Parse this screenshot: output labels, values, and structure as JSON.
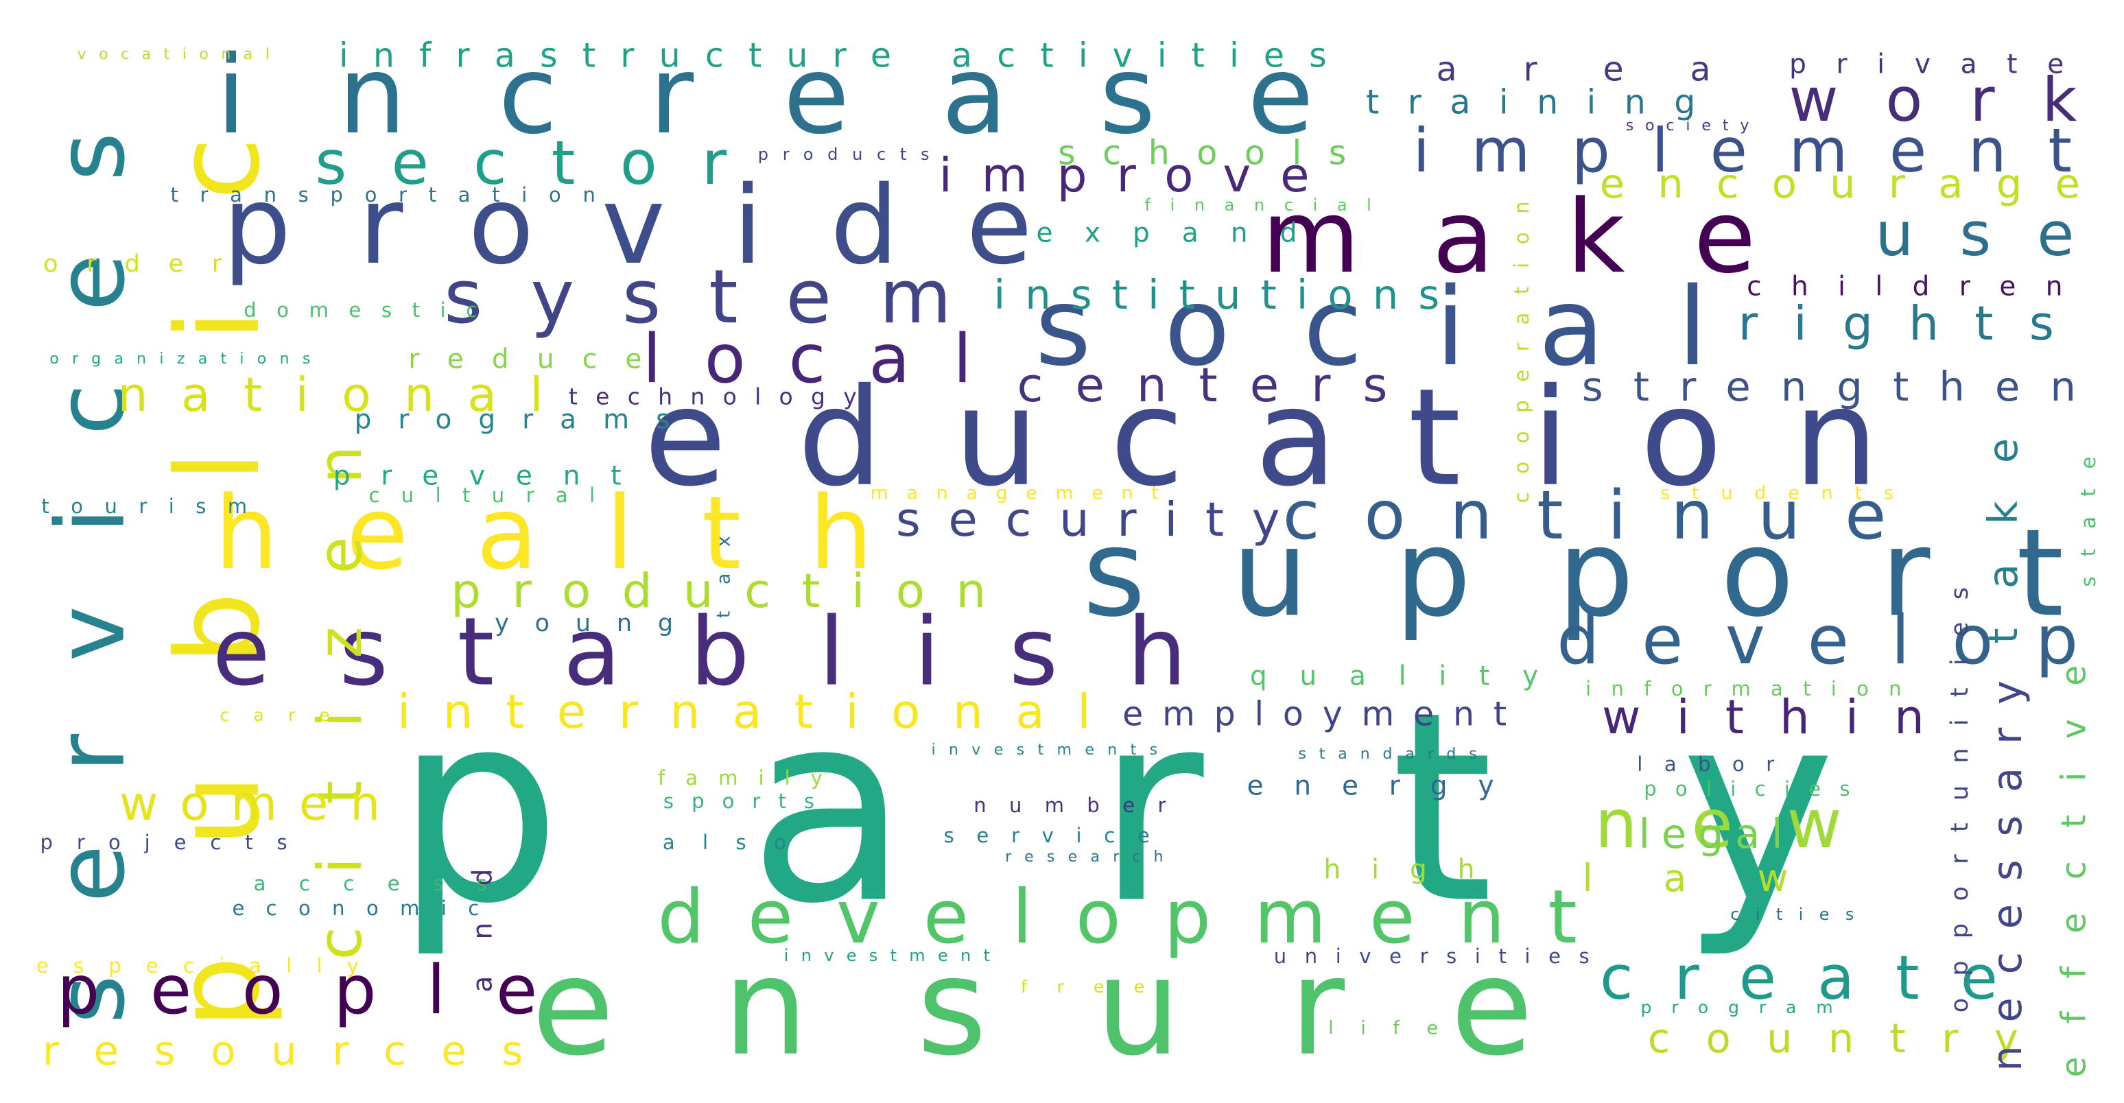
{
  "words": [
    {
      "text": "party",
      "color": "#22a884"
    },
    {
      "text": "ensure",
      "color": "#4ec36b"
    },
    {
      "text": "education",
      "color": "#3e4a89"
    },
    {
      "text": "support",
      "color": "#31688e"
    },
    {
      "text": "social",
      "color": "#3a548c"
    },
    {
      "text": "increase",
      "color": "#2c728e"
    },
    {
      "text": "provide",
      "color": "#3d4e8a"
    },
    {
      "text": "make",
      "color": "#440154"
    },
    {
      "text": "public",
      "color": "#f1e51d"
    },
    {
      "text": "services",
      "color": "#26828e"
    },
    {
      "text": "establish",
      "color": "#472d7b"
    },
    {
      "text": "health",
      "color": "#fde725"
    },
    {
      "text": "development",
      "color": "#52c569"
    },
    {
      "text": "people",
      "color": "#440154"
    },
    {
      "text": "system",
      "color": "#414487"
    },
    {
      "text": "citizen",
      "color": "#cde11d"
    },
    {
      "text": "continue",
      "color": "#355e8d"
    },
    {
      "text": "local",
      "color": "#482677"
    },
    {
      "text": "develop",
      "color": "#33628d"
    },
    {
      "text": "new",
      "color": "#9fda3a"
    },
    {
      "text": "implement",
      "color": "#3b528b"
    },
    {
      "text": "create",
      "color": "#1f9a8a"
    },
    {
      "text": "sector",
      "color": "#1f9e89"
    },
    {
      "text": "work",
      "color": "#472c7a"
    },
    {
      "text": "use",
      "color": "#2d708e"
    },
    {
      "text": "international",
      "color": "#f8e621"
    },
    {
      "text": "within",
      "color": "#482576"
    },
    {
      "text": "production",
      "color": "#addc30"
    },
    {
      "text": "national",
      "color": "#d8e219"
    },
    {
      "text": "women",
      "color": "#e5e419"
    },
    {
      "text": "resources",
      "color": "#fde725"
    },
    {
      "text": "country",
      "color": "#bade28"
    },
    {
      "text": "centers",
      "color": "#46327e"
    },
    {
      "text": "strengthen",
      "color": "#3b528b"
    },
    {
      "text": "rights",
      "color": "#2a788e"
    },
    {
      "text": "improve",
      "color": "#482878"
    },
    {
      "text": "institutions",
      "color": "#21918c"
    },
    {
      "text": "encourage",
      "color": "#c2df23"
    },
    {
      "text": "security",
      "color": "#3f4788"
    },
    {
      "text": "necessary",
      "color": "#404688"
    },
    {
      "text": "effective",
      "color": "#5ec962"
    },
    {
      "text": "take",
      "color": "#277f8e"
    },
    {
      "text": "employment",
      "color": "#414487"
    },
    {
      "text": "legal",
      "color": "#7ad151"
    },
    {
      "text": "law",
      "color": "#b5de2b"
    },
    {
      "text": "infrastructure activities",
      "color": "#1fa187"
    },
    {
      "text": "area",
      "color": "#443983"
    },
    {
      "text": "private",
      "color": "#45337d"
    },
    {
      "text": "training",
      "color": "#2a768e"
    },
    {
      "text": "schools",
      "color": "#6ccd5a"
    },
    {
      "text": "expand",
      "color": "#1fa187"
    },
    {
      "text": "children",
      "color": "#471063"
    },
    {
      "text": "reduce",
      "color": "#86d549"
    },
    {
      "text": "programs",
      "color": "#25858e"
    },
    {
      "text": "prevent",
      "color": "#22a884"
    },
    {
      "text": "energy",
      "color": "#31688e"
    },
    {
      "text": "quality",
      "color": "#54c568"
    },
    {
      "text": "high",
      "color": "#a5db36"
    },
    {
      "text": "opportunities",
      "color": "#414487"
    },
    {
      "text": "young",
      "color": "#2c728e"
    },
    {
      "text": "and",
      "color": "#472c7a"
    },
    {
      "text": "technology",
      "color": "#46307e"
    },
    {
      "text": "order",
      "color": "#d5e21a"
    },
    {
      "text": "tourism",
      "color": "#27808e"
    },
    {
      "text": "projects",
      "color": "#3e4989"
    },
    {
      "text": "access",
      "color": "#3aba76"
    },
    {
      "text": "economic",
      "color": "#2a788e"
    },
    {
      "text": "especially",
      "color": "#fde725"
    },
    {
      "text": "number",
      "color": "#46327e"
    },
    {
      "text": "service",
      "color": "#26828e"
    },
    {
      "text": "also",
      "color": "#26828e"
    },
    {
      "text": "family",
      "color": "#9bd93c"
    },
    {
      "text": "sports",
      "color": "#35b779"
    },
    {
      "text": "labor",
      "color": "#3b528b"
    },
    {
      "text": "policies",
      "color": "#4ac16d"
    },
    {
      "text": "universities",
      "color": "#3e4989"
    },
    {
      "text": "transportation",
      "color": "#2c728e"
    },
    {
      "text": "domestic",
      "color": "#4ac16d"
    },
    {
      "text": "cultural",
      "color": "#4ac16d"
    },
    {
      "text": "information",
      "color": "#67cc5c"
    },
    {
      "text": "free",
      "color": "#d8e219"
    },
    {
      "text": "life",
      "color": "#6ccd5a"
    },
    {
      "text": "program",
      "color": "#25ab82"
    },
    {
      "text": "state",
      "color": "#4ac16d"
    },
    {
      "text": "cooperation",
      "color": "#b5de2b"
    },
    {
      "text": "management",
      "color": "#fde725"
    },
    {
      "text": "students",
      "color": "#fde725"
    },
    {
      "text": "care",
      "color": "#dde318"
    },
    {
      "text": "tax",
      "color": "#2c728e"
    },
    {
      "text": "vocational",
      "color": "#b5de2b"
    },
    {
      "text": "products",
      "color": "#3f4788"
    },
    {
      "text": "financial",
      "color": "#5ec962"
    },
    {
      "text": "organizations",
      "color": "#22a884"
    },
    {
      "text": "investments",
      "color": "#25858e"
    },
    {
      "text": "standards",
      "color": "#2a788e"
    },
    {
      "text": "investment",
      "color": "#1fa187"
    },
    {
      "text": "research",
      "color": "#2c728e"
    },
    {
      "text": "cities",
      "color": "#2c728e"
    },
    {
      "text": "society",
      "color": "#443a83"
    }
  ]
}
